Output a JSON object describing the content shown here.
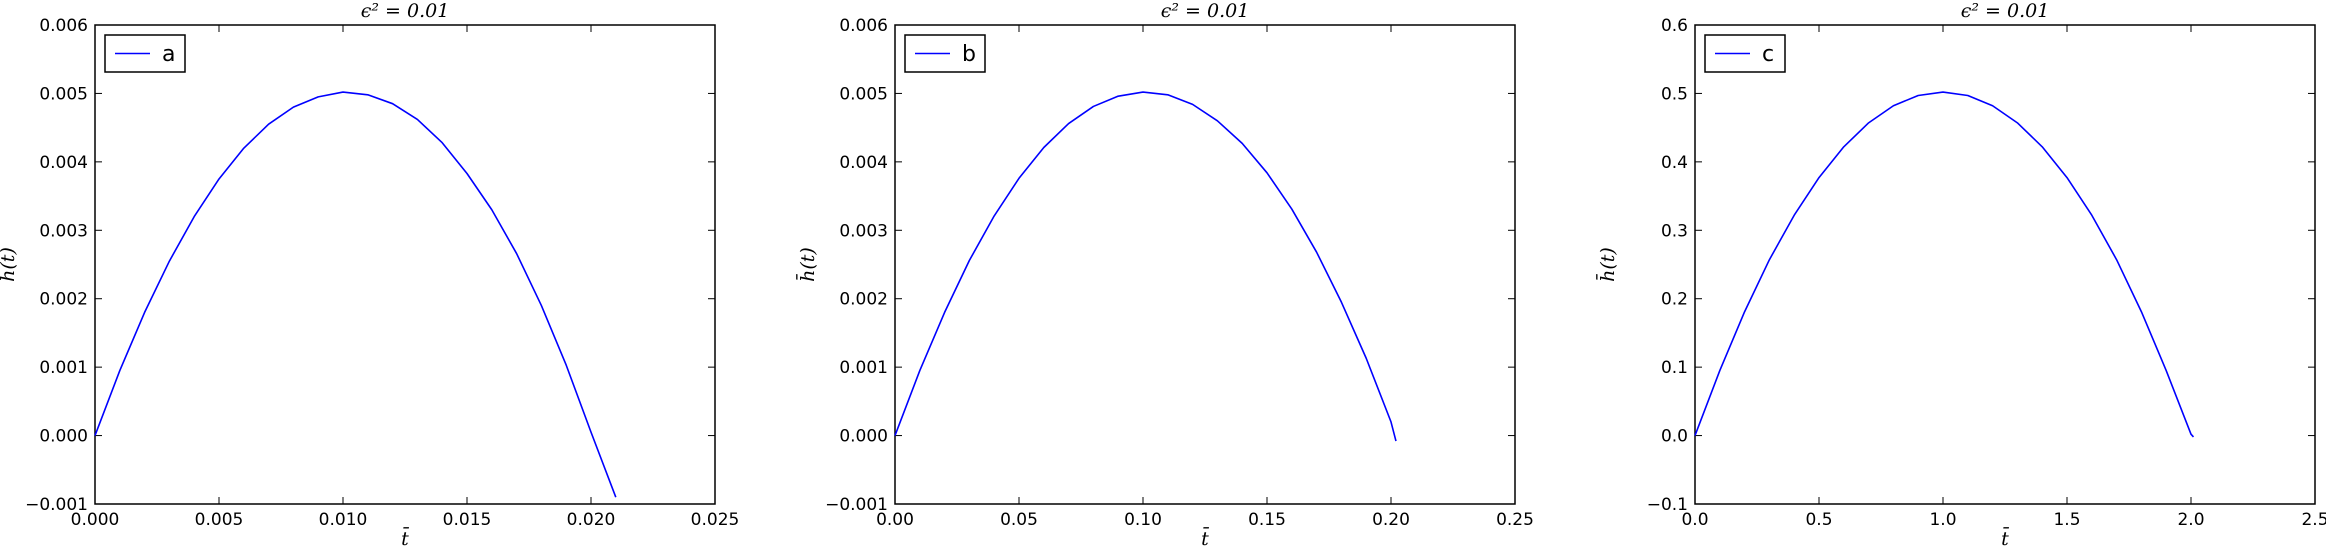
{
  "chart_data": [
    {
      "type": "line",
      "title": "ϵ² = 0.01",
      "xlabel": "t̄",
      "ylabel": "h̄(t)",
      "xlim": [
        0,
        0.025
      ],
      "ylim": [
        -0.001,
        0.006
      ],
      "xticks": [
        "0.000",
        "0.005",
        "0.010",
        "0.015",
        "0.020",
        "0.025"
      ],
      "yticks": [
        "−0.001",
        "0.000",
        "0.001",
        "0.002",
        "0.003",
        "0.004",
        "0.005",
        "0.006"
      ],
      "legend_position": "top-left",
      "color": "#0000ff",
      "series": [
        {
          "name": "a",
          "x": [
            0.0,
            0.001,
            0.002,
            0.003,
            0.004,
            0.005,
            0.006,
            0.007,
            0.008,
            0.009,
            0.01,
            0.011,
            0.012,
            0.013,
            0.014,
            0.015,
            0.016,
            0.017,
            0.018,
            0.019,
            0.02,
            0.021
          ],
          "y": [
            0.0,
            0.00095,
            0.0018,
            0.00255,
            0.0032,
            0.00375,
            0.0042,
            0.00455,
            0.0048,
            0.00495,
            0.00502,
            0.00498,
            0.00485,
            0.00462,
            0.00428,
            0.00383,
            0.0033,
            0.00266,
            0.0019,
            0.00103,
            5e-05,
            -0.0009
          ]
        }
      ]
    },
    {
      "type": "line",
      "title": "ϵ² = 0.01",
      "xlabel": "t̄",
      "ylabel": "h̄(t)",
      "xlim": [
        0,
        0.25
      ],
      "ylim": [
        -0.001,
        0.006
      ],
      "xticks": [
        "0.00",
        "0.05",
        "0.10",
        "0.15",
        "0.20",
        "0.25"
      ],
      "yticks": [
        "−0.001",
        "0.000",
        "0.001",
        "0.002",
        "0.003",
        "0.004",
        "0.005",
        "0.006"
      ],
      "legend_position": "top-left",
      "color": "#0000ff",
      "series": [
        {
          "name": "b",
          "x": [
            0.0,
            0.01,
            0.02,
            0.03,
            0.04,
            0.05,
            0.06,
            0.07,
            0.08,
            0.09,
            0.1,
            0.11,
            0.12,
            0.13,
            0.14,
            0.15,
            0.16,
            0.17,
            0.18,
            0.19,
            0.2,
            0.202
          ],
          "y": [
            0.0,
            0.00095,
            0.0018,
            0.00256,
            0.00321,
            0.00376,
            0.00421,
            0.00456,
            0.00481,
            0.00496,
            0.00502,
            0.00498,
            0.00484,
            0.0046,
            0.00427,
            0.00384,
            0.00331,
            0.00268,
            0.00195,
            0.00113,
            0.0002,
            -8e-05
          ]
        }
      ]
    },
    {
      "type": "line",
      "title": "ϵ² = 0.01",
      "xlabel": "t̄",
      "ylabel": "h̄(t)",
      "xlim": [
        0,
        2.5
      ],
      "ylim": [
        -0.1,
        0.6
      ],
      "xticks": [
        "0.0",
        "0.5",
        "1.0",
        "1.5",
        "2.0",
        "2.5"
      ],
      "yticks": [
        "−0.1",
        "0.0",
        "0.1",
        "0.2",
        "0.3",
        "0.4",
        "0.5",
        "0.6"
      ],
      "legend_position": "top-left",
      "color": "#0000ff",
      "series": [
        {
          "name": "c",
          "x": [
            0.0,
            0.1,
            0.2,
            0.3,
            0.4,
            0.5,
            0.6,
            0.7,
            0.8,
            0.9,
            1.0,
            1.1,
            1.2,
            1.3,
            1.4,
            1.5,
            1.6,
            1.7,
            1.8,
            1.9,
            2.0,
            2.01
          ],
          "y": [
            0.0,
            0.095,
            0.181,
            0.257,
            0.322,
            0.377,
            0.422,
            0.457,
            0.482,
            0.497,
            0.502,
            0.497,
            0.482,
            0.457,
            0.422,
            0.377,
            0.322,
            0.257,
            0.181,
            0.095,
            0.002,
            -0.002
          ]
        }
      ]
    }
  ]
}
